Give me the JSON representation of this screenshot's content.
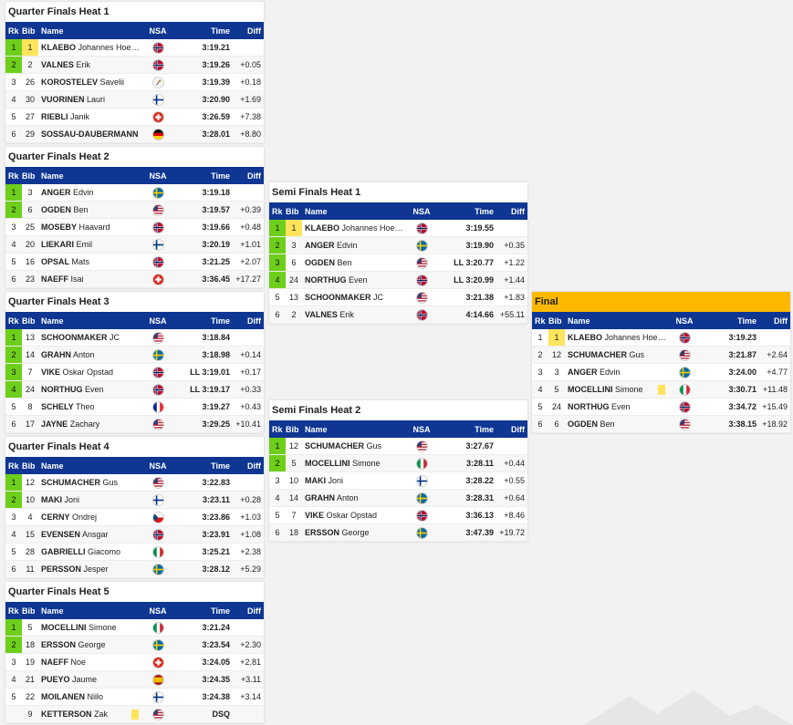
{
  "columns": {
    "rk": "Rk",
    "bib": "Bib",
    "name": "Name",
    "nsa": "NSA",
    "time": "Time",
    "diff": "Diff"
  },
  "colors": {
    "header_bg": "#0e3692",
    "qualified": "#6ecf1b",
    "highlight_bib": "#ffe45c",
    "final_title": "#fcb900"
  },
  "heats": [
    {
      "title": "Quarter Finals Heat 1",
      "rows": [
        {
          "rk": "1",
          "bib": "1",
          "last": "KLAEBO",
          "first": "Johannes Hoesflot",
          "nsa": "NOR",
          "time": "3:19.21",
          "diff": "",
          "q": true,
          "hl": true
        },
        {
          "rk": "2",
          "bib": "2",
          "last": "VALNES",
          "first": "Erik",
          "nsa": "NOR",
          "time": "3:19.26",
          "diff": "+0.05",
          "q": true
        },
        {
          "rk": "3",
          "bib": "26",
          "last": "KOROSTELEV",
          "first": "Savelii",
          "nsa": "AIN",
          "time": "3:19.39",
          "diff": "+0.18"
        },
        {
          "rk": "4",
          "bib": "30",
          "last": "VUORINEN",
          "first": "Lauri",
          "nsa": "FIN",
          "time": "3:20.90",
          "diff": "+1.69"
        },
        {
          "rk": "5",
          "bib": "27",
          "last": "RIEBLI",
          "first": "Janik",
          "nsa": "SUI",
          "time": "3:26.59",
          "diff": "+7.38"
        },
        {
          "rk": "6",
          "bib": "29",
          "last": "SOSSAU-DAUBERMANN",
          "first": "",
          "nsa": "GER",
          "time": "3:28.01",
          "diff": "+8.80"
        }
      ]
    },
    {
      "title": "Quarter Finals Heat 2",
      "rows": [
        {
          "rk": "1",
          "bib": "3",
          "last": "ANGER",
          "first": "Edvin",
          "nsa": "SWE",
          "time": "3:19.18",
          "diff": "",
          "q": true
        },
        {
          "rk": "2",
          "bib": "6",
          "last": "OGDEN",
          "first": "Ben",
          "nsa": "USA",
          "time": "3:19.57",
          "diff": "+0.39",
          "q": true
        },
        {
          "rk": "3",
          "bib": "25",
          "last": "MOSEBY",
          "first": "Haavard",
          "nsa": "NOR",
          "time": "3:19.66",
          "diff": "+0.48"
        },
        {
          "rk": "4",
          "bib": "20",
          "last": "LIEKARI",
          "first": "Emil",
          "nsa": "FIN",
          "time": "3:20.19",
          "diff": "+1.01"
        },
        {
          "rk": "5",
          "bib": "16",
          "last": "OPSAL",
          "first": "Mats",
          "nsa": "NOR",
          "time": "3:21.25",
          "diff": "+2.07"
        },
        {
          "rk": "6",
          "bib": "23",
          "last": "NAEFF",
          "first": "Isai",
          "nsa": "SUI",
          "time": "3:36.45",
          "diff": "+17.27"
        }
      ]
    },
    {
      "title": "Quarter Finals Heat 3",
      "rows": [
        {
          "rk": "1",
          "bib": "13",
          "last": "SCHOONMAKER",
          "first": "JC",
          "nsa": "USA",
          "time": "3:18.84",
          "diff": "",
          "q": true
        },
        {
          "rk": "2",
          "bib": "14",
          "last": "GRAHN",
          "first": "Anton",
          "nsa": "SWE",
          "time": "3:18.98",
          "diff": "+0.14",
          "q": true
        },
        {
          "rk": "3",
          "bib": "7",
          "last": "VIKE",
          "first": "Oskar Opstad",
          "nsa": "NOR",
          "time": "LL 3:19.01",
          "diff": "+0.17",
          "q": true
        },
        {
          "rk": "4",
          "bib": "24",
          "last": "NORTHUG",
          "first": "Even",
          "nsa": "NOR",
          "time": "LL 3:19.17",
          "diff": "+0.33",
          "q": true
        },
        {
          "rk": "5",
          "bib": "8",
          "last": "SCHELY",
          "first": "Theo",
          "nsa": "FRA",
          "time": "3:19.27",
          "diff": "+0.43"
        },
        {
          "rk": "6",
          "bib": "17",
          "last": "JAYNE",
          "first": "Zachary",
          "nsa": "USA",
          "time": "3:29.25",
          "diff": "+10.41"
        }
      ]
    },
    {
      "title": "Quarter Finals Heat 4",
      "rows": [
        {
          "rk": "1",
          "bib": "12",
          "last": "SCHUMACHER",
          "first": "Gus",
          "nsa": "USA",
          "time": "3:22.83",
          "diff": "",
          "q": true
        },
        {
          "rk": "2",
          "bib": "10",
          "last": "MAKI",
          "first": "Joni",
          "nsa": "FIN",
          "time": "3:23.11",
          "diff": "+0.28",
          "q": true
        },
        {
          "rk": "3",
          "bib": "4",
          "last": "CERNY",
          "first": "Ondrej",
          "nsa": "CZE",
          "time": "3:23.86",
          "diff": "+1.03"
        },
        {
          "rk": "4",
          "bib": "15",
          "last": "EVENSEN",
          "first": "Ansgar",
          "nsa": "NOR",
          "time": "3:23.91",
          "diff": "+1.08"
        },
        {
          "rk": "5",
          "bib": "28",
          "last": "GABRIELLI",
          "first": "Giacomo",
          "nsa": "ITA",
          "time": "3:25.21",
          "diff": "+2.38"
        },
        {
          "rk": "6",
          "bib": "11",
          "last": "PERSSON",
          "first": "Jesper",
          "nsa": "SWE",
          "time": "3:28.12",
          "diff": "+5.29"
        }
      ]
    },
    {
      "title": "Quarter Finals Heat 5",
      "rows": [
        {
          "rk": "1",
          "bib": "5",
          "last": "MOCELLINI",
          "first": "Simone",
          "nsa": "ITA",
          "time": "3:21.24",
          "diff": "",
          "q": true
        },
        {
          "rk": "2",
          "bib": "18",
          "last": "ERSSON",
          "first": "George",
          "nsa": "SWE",
          "time": "3:23.54",
          "diff": "+2.30",
          "q": true
        },
        {
          "rk": "3",
          "bib": "19",
          "last": "NAEFF",
          "first": "Noe",
          "nsa": "SUI",
          "time": "3:24.05",
          "diff": "+2.81"
        },
        {
          "rk": "4",
          "bib": "21",
          "last": "PUEYO",
          "first": "Jaume",
          "nsa": "ESP",
          "time": "3:24.35",
          "diff": "+3.11"
        },
        {
          "rk": "5",
          "bib": "22",
          "last": "MOILANEN",
          "first": "Niilo",
          "nsa": "FIN",
          "time": "3:24.38",
          "diff": "+3.14"
        },
        {
          "rk": "",
          "bib": "9",
          "last": "KETTERSON",
          "first": "Zak",
          "nsa": "USA",
          "time": "DSQ",
          "diff": "",
          "card": true
        }
      ]
    },
    {
      "title": "Semi Finals Heat 1",
      "rows": [
        {
          "rk": "1",
          "bib": "1",
          "last": "KLAEBO",
          "first": "Johannes Hoesflot",
          "nsa": "NOR",
          "time": "3:19.55",
          "diff": "",
          "q": true,
          "hl": true
        },
        {
          "rk": "2",
          "bib": "3",
          "last": "ANGER",
          "first": "Edvin",
          "nsa": "SWE",
          "time": "3:19.90",
          "diff": "+0.35",
          "q": true
        },
        {
          "rk": "3",
          "bib": "6",
          "last": "OGDEN",
          "first": "Ben",
          "nsa": "USA",
          "time": "LL 3:20.77",
          "diff": "+1.22",
          "q": true
        },
        {
          "rk": "4",
          "bib": "24",
          "last": "NORTHUG",
          "first": "Even",
          "nsa": "NOR",
          "time": "LL 3:20.99",
          "diff": "+1.44",
          "q": true
        },
        {
          "rk": "5",
          "bib": "13",
          "last": "SCHOONMAKER",
          "first": "JC",
          "nsa": "USA",
          "time": "3:21.38",
          "diff": "+1.83"
        },
        {
          "rk": "6",
          "bib": "2",
          "last": "VALNES",
          "first": "Erik",
          "nsa": "NOR",
          "time": "4:14.66",
          "diff": "+55.11"
        }
      ]
    },
    {
      "title": "Semi Finals Heat 2",
      "rows": [
        {
          "rk": "1",
          "bib": "12",
          "last": "SCHUMACHER",
          "first": "Gus",
          "nsa": "USA",
          "time": "3:27.67",
          "diff": "",
          "q": true
        },
        {
          "rk": "2",
          "bib": "5",
          "last": "MOCELLINI",
          "first": "Simone",
          "nsa": "ITA",
          "time": "3:28.11",
          "diff": "+0.44",
          "q": true
        },
        {
          "rk": "3",
          "bib": "10",
          "last": "MAKI",
          "first": "Joni",
          "nsa": "FIN",
          "time": "3:28.22",
          "diff": "+0.55"
        },
        {
          "rk": "4",
          "bib": "14",
          "last": "GRAHN",
          "first": "Anton",
          "nsa": "SWE",
          "time": "3:28.31",
          "diff": "+0.64"
        },
        {
          "rk": "5",
          "bib": "7",
          "last": "VIKE",
          "first": "Oskar Opstad",
          "nsa": "NOR",
          "time": "3:36.13",
          "diff": "+8.46"
        },
        {
          "rk": "6",
          "bib": "18",
          "last": "ERSSON",
          "first": "George",
          "nsa": "SWE",
          "time": "3:47.39",
          "diff": "+19.72"
        }
      ]
    },
    {
      "title": "Final",
      "final": true,
      "rows": [
        {
          "rk": "1",
          "bib": "1",
          "last": "KLAEBO",
          "first": "Johannes Hoesflot",
          "nsa": "NOR",
          "time": "3:19.23",
          "diff": "",
          "hl": true
        },
        {
          "rk": "2",
          "bib": "12",
          "last": "SCHUMACHER",
          "first": "Gus",
          "nsa": "USA",
          "time": "3:21.87",
          "diff": "+2.64"
        },
        {
          "rk": "3",
          "bib": "3",
          "last": "ANGER",
          "first": "Edvin",
          "nsa": "SWE",
          "time": "3:24.00",
          "diff": "+4.77"
        },
        {
          "rk": "4",
          "bib": "5",
          "last": "MOCELLINI",
          "first": "Simone",
          "nsa": "ITA",
          "time": "3:30.71",
          "diff": "+11.48",
          "card": true
        },
        {
          "rk": "5",
          "bib": "24",
          "last": "NORTHUG",
          "first": "Even",
          "nsa": "NOR",
          "time": "3:34.72",
          "diff": "+15.49"
        },
        {
          "rk": "6",
          "bib": "6",
          "last": "OGDEN",
          "first": "Ben",
          "nsa": "USA",
          "time": "3:38.15",
          "diff": "+18.92"
        }
      ]
    }
  ]
}
